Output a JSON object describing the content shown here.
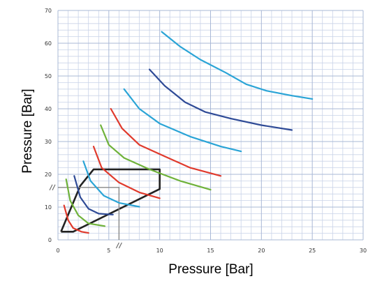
{
  "chart_data": {
    "type": "line",
    "title": "",
    "xlabel": "Pressure [Bar]",
    "ylabel": "Pressure [Bar]",
    "xlim": [
      0,
      30
    ],
    "ylim": [
      0,
      70
    ],
    "x_ticks": [
      "0",
      "5",
      "10",
      "15",
      "20",
      "25",
      "30"
    ],
    "y_ticks": [
      "0",
      "10",
      "20",
      "30",
      "40",
      "50",
      "60",
      "70"
    ],
    "grid": true,
    "legend": "none",
    "series": [
      {
        "color": "#e03a2c",
        "points": [
          [
            0.6,
            10.5
          ],
          [
            1.0,
            6.0
          ],
          [
            1.5,
            3.6
          ],
          [
            2.3,
            2.5
          ],
          [
            3.0,
            2.1
          ]
        ]
      },
      {
        "color": "#6fb23a",
        "points": [
          [
            0.8,
            18.5
          ],
          [
            1.2,
            12.0
          ],
          [
            2.0,
            7.5
          ],
          [
            3.0,
            5.0
          ],
          [
            4.6,
            4.2
          ]
        ]
      },
      {
        "color": "#2e4a96",
        "points": [
          [
            1.6,
            19.5
          ],
          [
            2.2,
            13.0
          ],
          [
            3.0,
            9.5
          ],
          [
            4.0,
            8.0
          ],
          [
            5.4,
            7.7
          ]
        ]
      },
      {
        "color": "#2aa4d6",
        "points": [
          [
            2.5,
            24.0
          ],
          [
            3.2,
            18.0
          ],
          [
            4.5,
            13.5
          ],
          [
            6.0,
            11.3
          ],
          [
            8.0,
            10.1
          ]
        ]
      },
      {
        "color": "#e03a2c",
        "points": [
          [
            3.5,
            28.5
          ],
          [
            4.3,
            22.0
          ],
          [
            6.0,
            17.5
          ],
          [
            8.0,
            14.5
          ],
          [
            10.0,
            12.7
          ]
        ]
      },
      {
        "color": "#6fb23a",
        "points": [
          [
            4.2,
            35.0
          ],
          [
            5.0,
            29.0
          ],
          [
            6.5,
            25.0
          ],
          [
            9.0,
            21.5
          ],
          [
            12.0,
            18.0
          ],
          [
            15.0,
            15.3
          ]
        ]
      },
      {
        "color": "#e03a2c",
        "points": [
          [
            5.2,
            40.0
          ],
          [
            6.3,
            34.0
          ],
          [
            8.0,
            29.0
          ],
          [
            10.5,
            25.5
          ],
          [
            13.0,
            22.0
          ],
          [
            16.0,
            19.5
          ]
        ]
      },
      {
        "color": "#2aa4d6",
        "points": [
          [
            6.5,
            46.0
          ],
          [
            8.0,
            40.0
          ],
          [
            10.0,
            35.5
          ],
          [
            13.0,
            31.5
          ],
          [
            16.0,
            28.5
          ],
          [
            18.0,
            27.0
          ]
        ]
      },
      {
        "color": "#2e4a96",
        "points": [
          [
            9.0,
            52.0
          ],
          [
            10.5,
            47.0
          ],
          [
            12.5,
            42.0
          ],
          [
            14.5,
            39.0
          ],
          [
            17.0,
            37.0
          ],
          [
            20.0,
            35.0
          ],
          [
            23.0,
            33.5
          ]
        ]
      },
      {
        "color": "#2aa4d6",
        "points": [
          [
            10.2,
            63.5
          ],
          [
            12.0,
            59.0
          ],
          [
            14.0,
            55.0
          ],
          [
            16.5,
            51.0
          ],
          [
            18.5,
            47.5
          ],
          [
            20.5,
            45.5
          ],
          [
            23.0,
            44.0
          ],
          [
            25.0,
            43.0
          ]
        ]
      }
    ]
  }
}
